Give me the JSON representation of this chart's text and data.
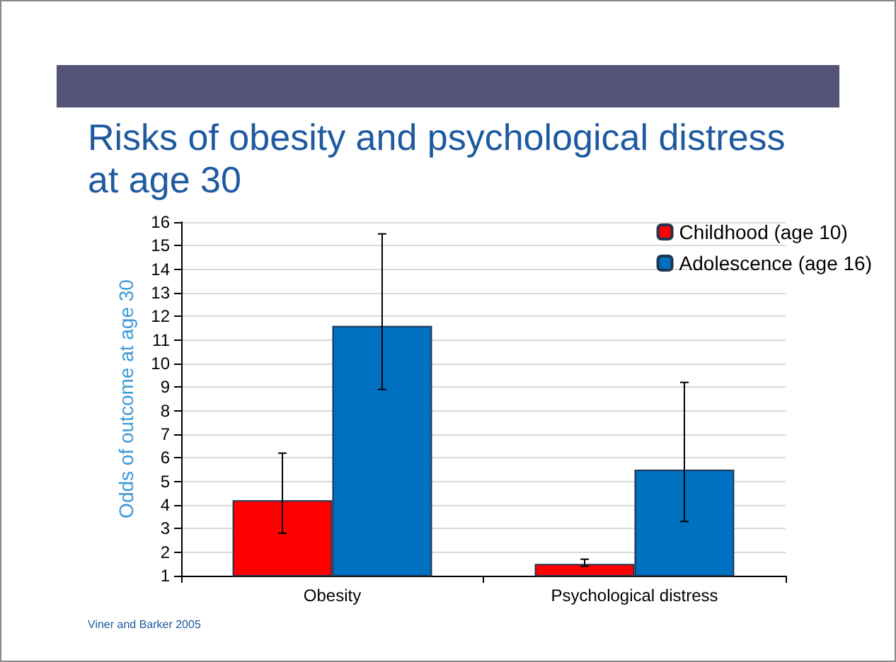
{
  "chart_data": {
    "type": "bar",
    "title": "Risks of obesity and psychological distress at age 30",
    "ylabel": "Odds of outcome at age 30",
    "categories": [
      "Obesity",
      "Psychological distress"
    ],
    "series": [
      {
        "name": "Childhood (age 10)",
        "color": "#ff0000",
        "values": [
          4.2,
          1.5
        ],
        "errors": [
          [
            2.8,
            6.2
          ],
          [
            1.4,
            1.7
          ]
        ]
      },
      {
        "name": "Adolescence (age 16)",
        "color": "#0070c0",
        "values": [
          11.6,
          5.5
        ],
        "errors": [
          [
            8.9,
            15.5
          ],
          [
            3.3,
            9.2
          ]
        ]
      }
    ],
    "ylim": [
      1,
      16
    ],
    "yticks": [
      1,
      2,
      3,
      4,
      5,
      6,
      7,
      8,
      9,
      10,
      11,
      12,
      13,
      14,
      15,
      16
    ],
    "grid": "y",
    "legend": "top right",
    "annotations": [
      "Viner and Barker 2005"
    ]
  }
}
